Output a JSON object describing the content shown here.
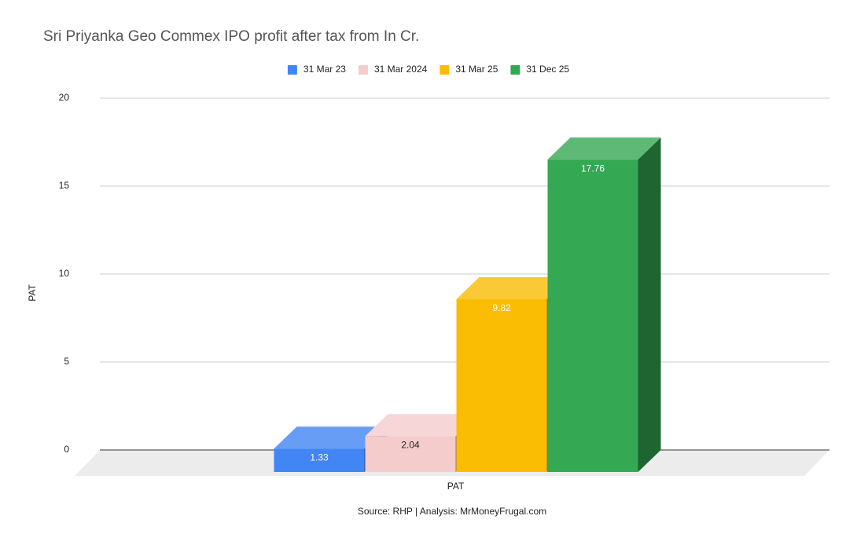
{
  "chart_data": {
    "type": "bar3d",
    "title": "Sri Priyanka Geo Commex IPO profit after tax from In Cr.",
    "y_label": "PAT",
    "categories": [
      "PAT"
    ],
    "series": [
      {
        "name": "31 Mar 23",
        "color": "#4285f4",
        "values": [
          1.33
        ]
      },
      {
        "name": "31 Mar 2024",
        "color": "#f4cccc",
        "values": [
          2.04
        ]
      },
      {
        "name": "31 Mar 25",
        "color": "#fbbc04",
        "values": [
          9.82
        ]
      },
      {
        "name": "31 Dec 25",
        "color": "#34a853",
        "values": [
          17.76
        ]
      }
    ],
    "ylim": [
      0,
      20
    ],
    "yticks": [
      0,
      5,
      10,
      15,
      20
    ],
    "grid": true,
    "legend": "top",
    "source": "Source: RHP | Analysis: MrMoneyFrugal.com"
  }
}
